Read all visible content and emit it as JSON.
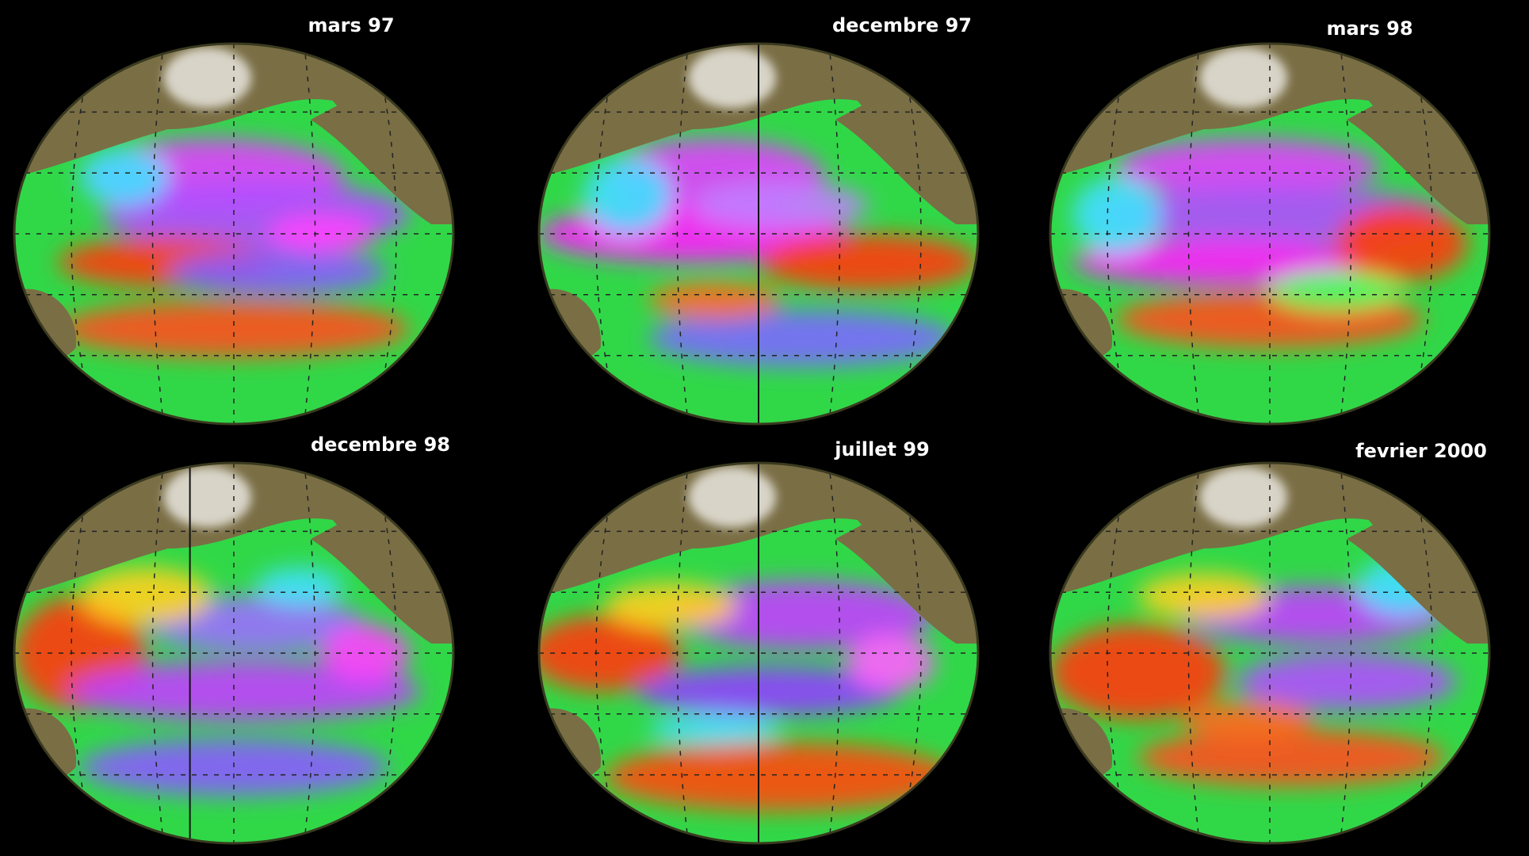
{
  "panels": [
    {
      "label": "mars 97"
    },
    {
      "label": "decembre 97"
    },
    {
      "label": "mars 98"
    },
    {
      "label": "decembre 98"
    },
    {
      "label": "juillet 99"
    },
    {
      "label": "fevrier 2000"
    }
  ]
}
